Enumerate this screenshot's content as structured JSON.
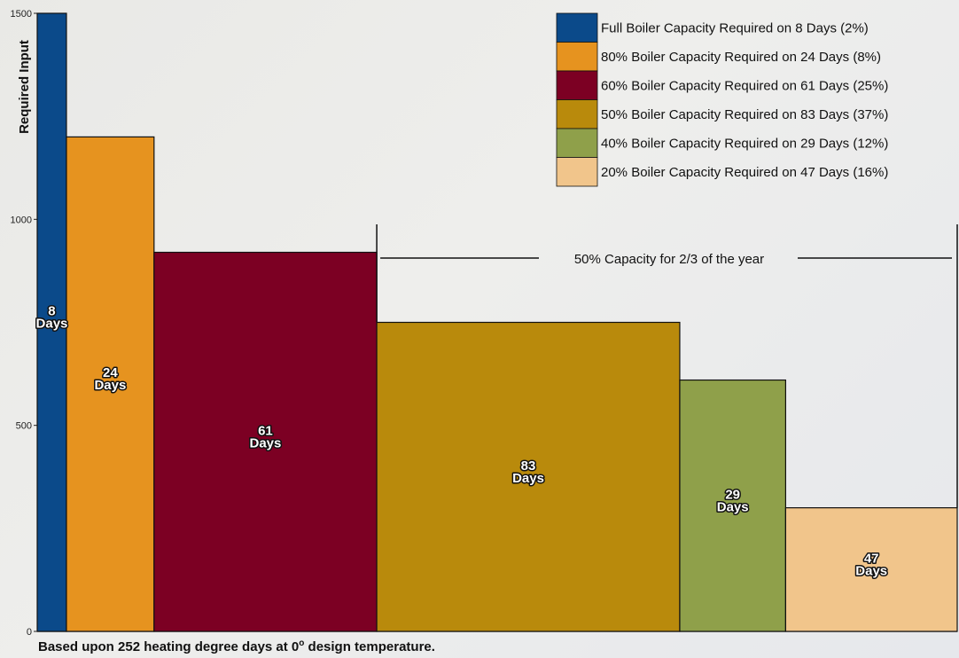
{
  "chart_data": {
    "type": "bar",
    "ylabel": "Required Input",
    "ylim": [
      0,
      1500
    ],
    "yticks": [
      0,
      500,
      1000,
      1500
    ],
    "note": "Based upon 252 heating degree days at 0",
    "note_sup": "o",
    "note_end": " design temperature.",
    "bars": [
      {
        "label_num": "8",
        "label_unit": "Days",
        "days": 8,
        "value": 1500,
        "color": "#0b4a8a",
        "legend": "Full Boiler Capacity Required on 8 Days (2%)"
      },
      {
        "label_num": "24",
        "label_unit": "Days",
        "days": 24,
        "value": 1200,
        "color": "#e6931f",
        "legend": "80% Boiler Capacity Required on 24 Days  (8%)"
      },
      {
        "label_num": "61",
        "label_unit": "Days",
        "days": 61,
        "value": 920,
        "color": "#7c0023",
        "legend": "60% Boiler Capacity Required on 61 Days  (25%)"
      },
      {
        "label_num": "83",
        "label_unit": "Days",
        "days": 83,
        "value": 750,
        "color": "#b98a0c",
        "legend": "50% Boiler Capacity Required on 83 Days  (37%)"
      },
      {
        "label_num": "29",
        "label_unit": "Days",
        "days": 29,
        "value": 610,
        "color": "#8fa04a",
        "legend": "40% Boiler Capacity Required on 29 Days (12%)"
      },
      {
        "label_num": "47",
        "label_unit": "Days",
        "days": 47,
        "value": 300,
        "color": "#f1c58b",
        "legend": "20% Boiler Capacity Required on 47 Days (16%)"
      }
    ],
    "annotation": "50% Capacity for 2/3 of the year"
  }
}
